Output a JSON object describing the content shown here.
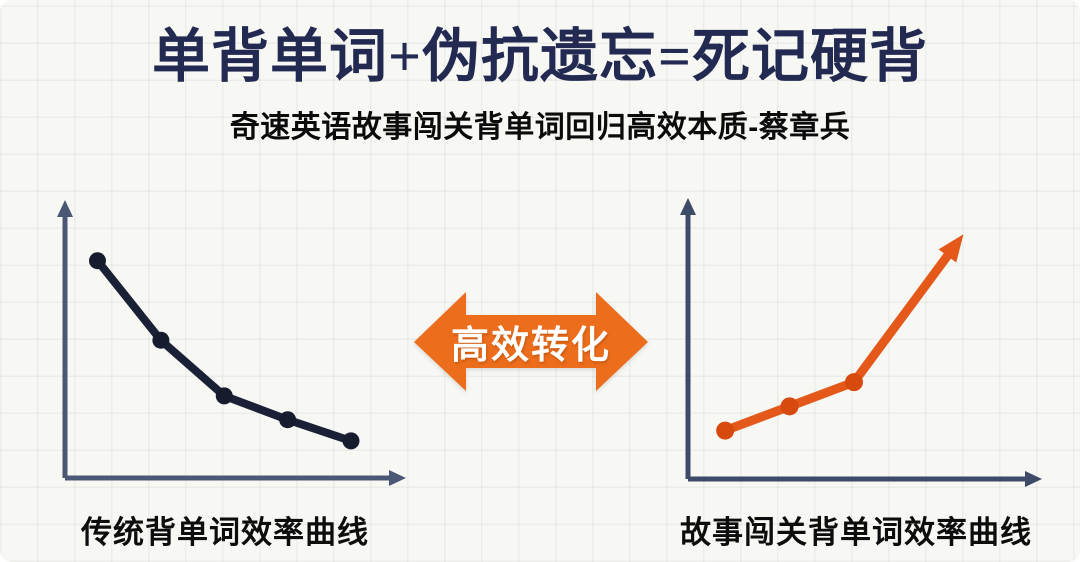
{
  "page": {
    "background_color": "#f7f7f4",
    "grid_color": "rgba(125,125,120,0.09)"
  },
  "header": {
    "title": "单背单词+伪抗遗忘=死记硬背",
    "title_color": "#232a52",
    "subtitle": "奇速英语故事闯关背单词回归高效本质-蔡章兵",
    "subtitle_color": "#0b0b0b"
  },
  "transfer_arrow": {
    "label": "高效转化",
    "fill_color": "#ec6d1c",
    "text_color": "#ffffff"
  },
  "chart_data": [
    {
      "id": "traditional",
      "type": "line",
      "title": "传统背单词效率曲线",
      "x": [
        1,
        2,
        3,
        4,
        5
      ],
      "values": [
        82,
        52,
        31,
        22,
        14
      ],
      "ylim": [
        0,
        100
      ],
      "xlabel": "",
      "ylabel": "",
      "grid": false,
      "legend": "none",
      "trend": "decreasing",
      "line_color": "#1a2036",
      "marker_color": "#161b2e",
      "marker_count": 5,
      "arrow_end": false,
      "axis_color": "#4b5875"
    },
    {
      "id": "story-levels",
      "type": "line",
      "title": "故事闯关背单词效率曲线",
      "x": [
        1,
        2,
        3,
        4.7
      ],
      "values": [
        18,
        27,
        36,
        91
      ],
      "ylim": [
        0,
        100
      ],
      "xlabel": "",
      "ylabel": "",
      "grid": false,
      "legend": "none",
      "trend": "increasing",
      "line_color": "#e4581a",
      "marker_color": "#d6490f",
      "marker_count": 3,
      "arrow_end": true,
      "axis_color": "#3d4a68"
    }
  ]
}
